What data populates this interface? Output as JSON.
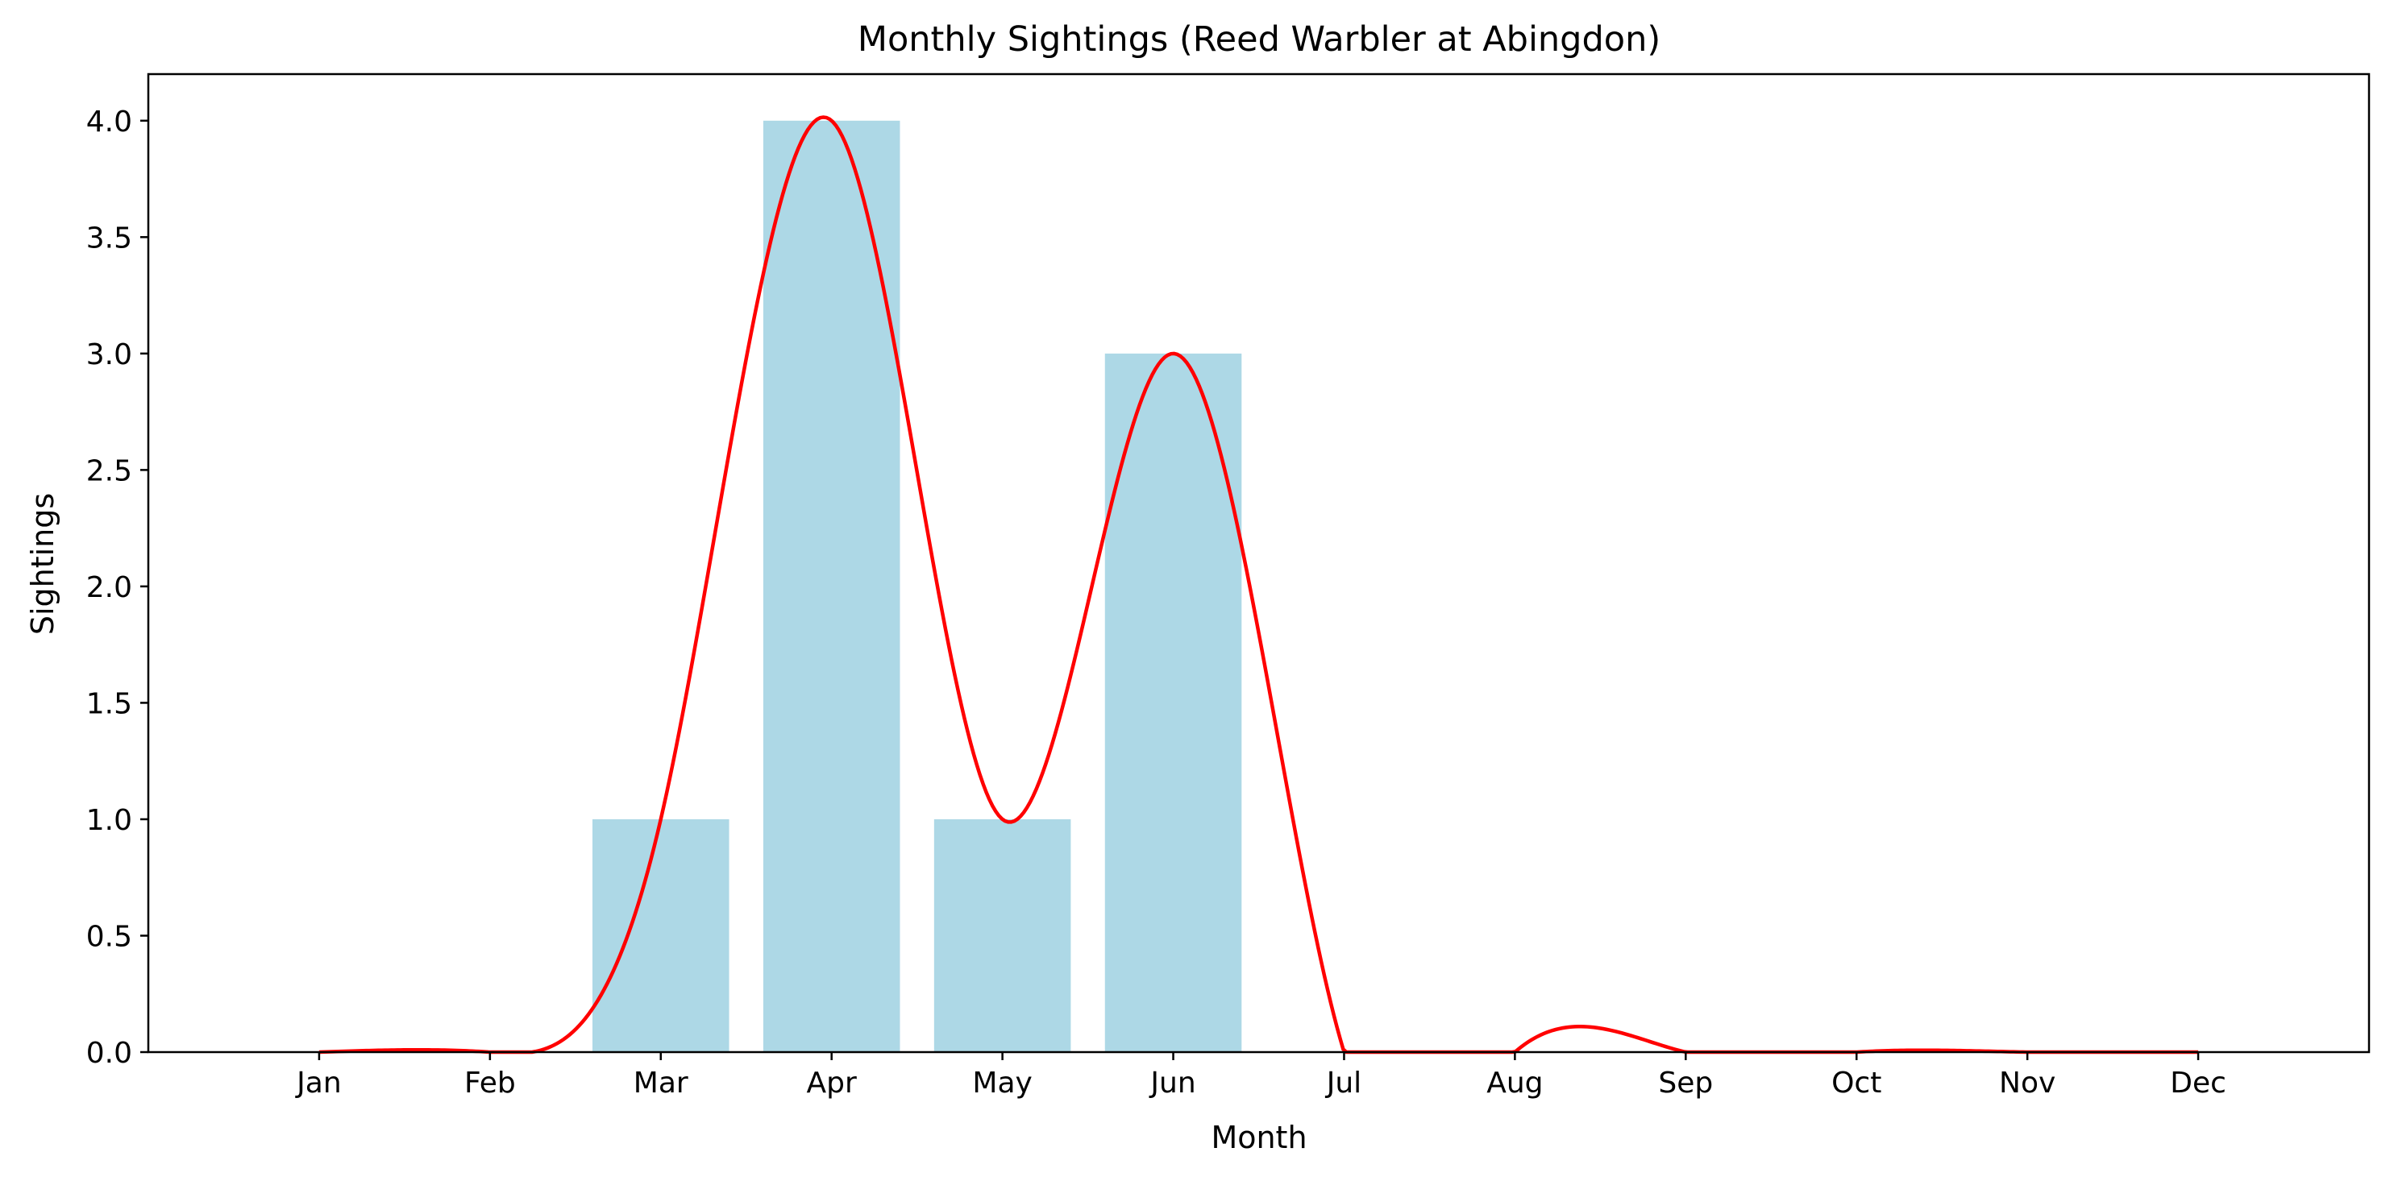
{
  "chart_data": {
    "type": "bar",
    "title": "Monthly Sightings (Reed Warbler at Abingdon)",
    "xlabel": "Month",
    "ylabel": "Sightings",
    "categories": [
      "Jan",
      "Feb",
      "Mar",
      "Apr",
      "May",
      "Jun",
      "Jul",
      "Aug",
      "Sep",
      "Oct",
      "Nov",
      "Dec"
    ],
    "values": [
      0,
      0,
      1,
      4,
      1,
      3,
      0,
      0,
      0,
      0,
      0,
      0
    ],
    "ylim": [
      0,
      4.2
    ],
    "yticks": [
      "0.0",
      "0.5",
      "1.0",
      "1.5",
      "2.0",
      "2.5",
      "3.0",
      "3.5",
      "4.0"
    ],
    "bar_color": "#add8e6",
    "line_color": "#ff0000",
    "overlay": "smoothed curve through monthly values, clipped at 0",
    "grid": false,
    "legend": "none"
  }
}
